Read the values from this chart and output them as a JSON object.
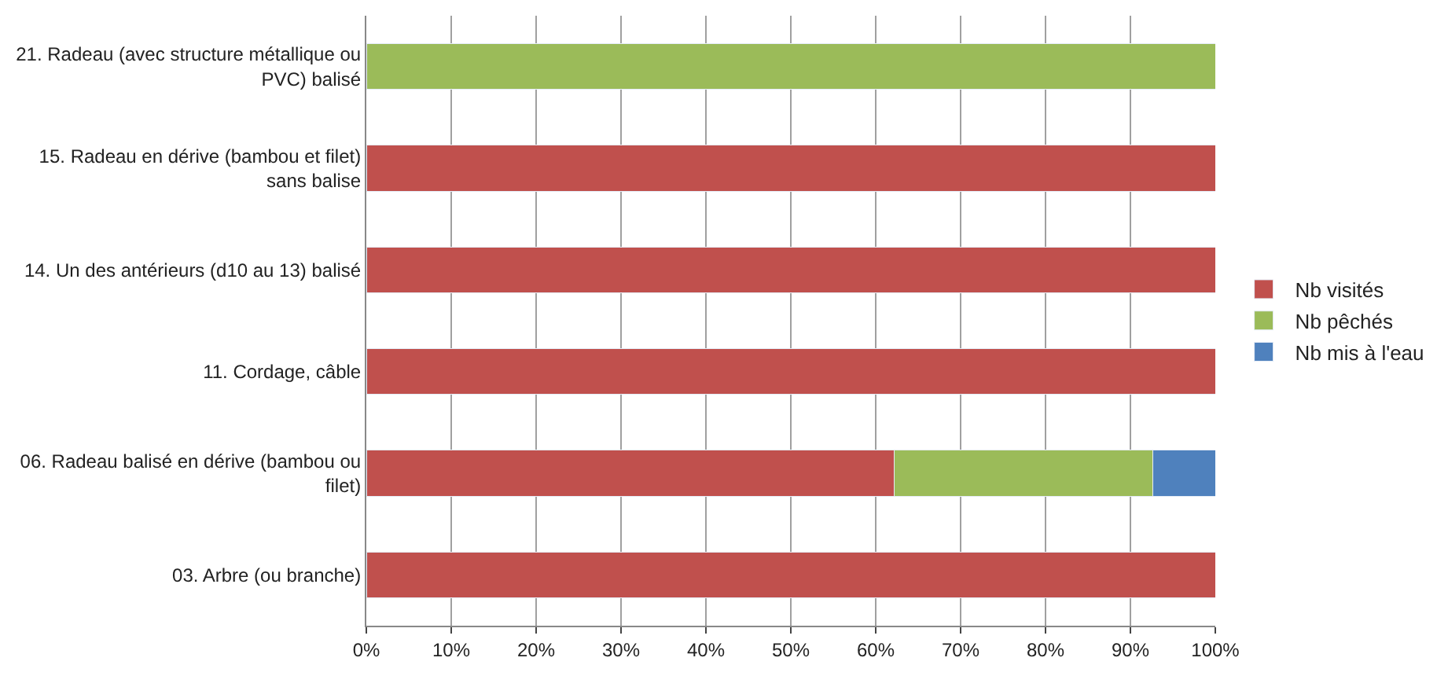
{
  "chart_data": {
    "type": "bar",
    "orientation": "horizontal",
    "stacked": true,
    "categories": [
      "21. Radeau (avec structure métallique ou PVC) balisé",
      "15. Radeau en dérive (bambou et filet) sans balise",
      "14. Un des antérieurs (d10 au 13) balisé",
      "11. Cordage, câble",
      "06. Radeau balisé en dérive (bambou ou filet)",
      "03. Arbre (ou branche)"
    ],
    "series": [
      {
        "name": "Nb visités",
        "color": "#c0504d",
        "values": [
          null,
          100,
          100,
          100,
          62.2,
          100
        ]
      },
      {
        "name": "Nb pêchés",
        "color": "#9bbb59",
        "values": [
          100,
          null,
          null,
          null,
          30.4,
          null
        ]
      },
      {
        "name": "Nb mis à l'eau",
        "color": "#4f81bd",
        "values": [
          null,
          null,
          null,
          null,
          7.4,
          null
        ]
      }
    ],
    "xlim": [
      0,
      100
    ],
    "xticks": [
      {
        "value": 0,
        "label": "0%"
      },
      {
        "value": 10,
        "label": "10%"
      },
      {
        "value": 20,
        "label": "20%"
      },
      {
        "value": 30,
        "label": "30%"
      },
      {
        "value": 40,
        "label": "40%"
      },
      {
        "value": 50,
        "label": "50%"
      },
      {
        "value": 60,
        "label": "60%"
      },
      {
        "value": 70,
        "label": "70%"
      },
      {
        "value": 80,
        "label": "80%"
      },
      {
        "value": 90,
        "label": "90%"
      },
      {
        "value": 100,
        "label": "100%"
      }
    ],
    "grid": "x",
    "legend": "right"
  }
}
